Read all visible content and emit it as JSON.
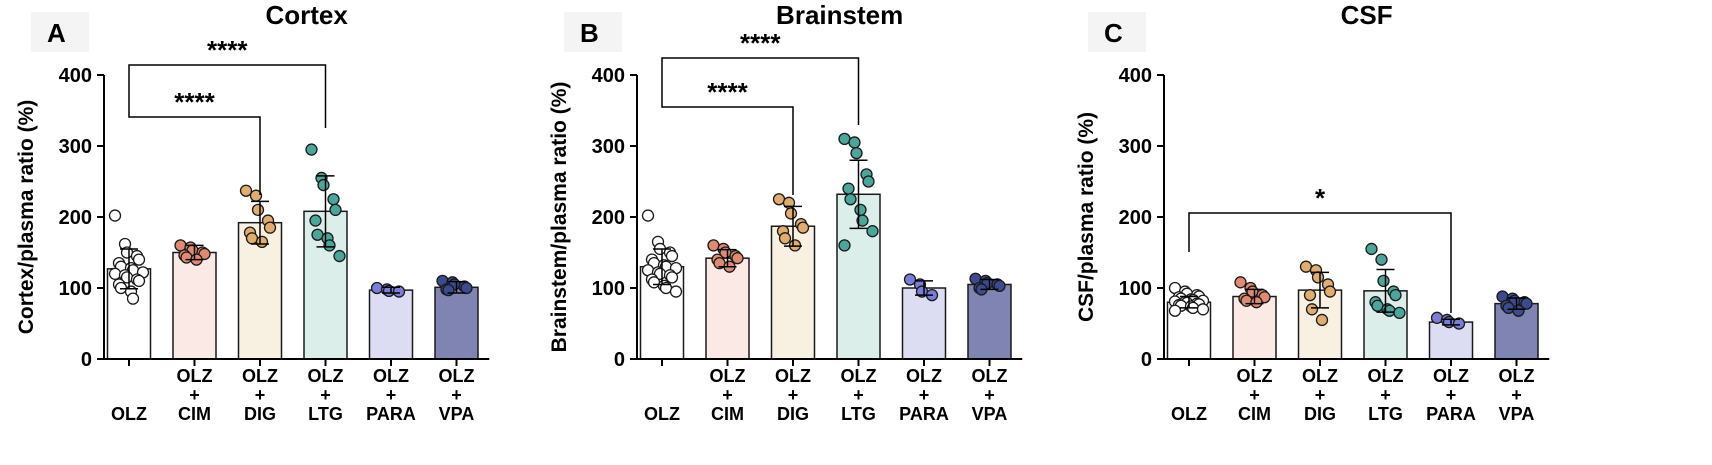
{
  "chart_data": [
    {
      "panel": "A",
      "type": "bar",
      "title": "Cortex",
      "ylabel": "Cortex/plasma ratio (%)",
      "ylim": [
        0,
        400
      ],
      "yticks": [
        0,
        100,
        200,
        300,
        400
      ],
      "categories": [
        {
          "lines": [
            "OLZ"
          ]
        },
        {
          "lines": [
            "OLZ",
            "+",
            "CIM"
          ]
        },
        {
          "lines": [
            "OLZ",
            "+",
            "DIG"
          ]
        },
        {
          "lines": [
            "OLZ",
            "+",
            "LTG"
          ]
        },
        {
          "lines": [
            "OLZ",
            "+",
            "PARA"
          ]
        },
        {
          "lines": [
            "OLZ",
            "+",
            "VPA"
          ]
        }
      ],
      "means": [
        127,
        150,
        192,
        208,
        97,
        101
      ],
      "sd": [
        28,
        10,
        30,
        50,
        4,
        8
      ],
      "points": [
        [
          202,
          162,
          150,
          145,
          140,
          135,
          130,
          128,
          125,
          122,
          120,
          118,
          115,
          112,
          110,
          105,
          100,
          95,
          85
        ],
        [
          160,
          157,
          153,
          150,
          148,
          146,
          143,
          140
        ],
        [
          237,
          230,
          210,
          195,
          185,
          178,
          170,
          165
        ],
        [
          295,
          255,
          245,
          225,
          210,
          195,
          175,
          170,
          160,
          145
        ],
        [
          100,
          98,
          96,
          95
        ],
        [
          110,
          108,
          105,
          102,
          100,
          98,
          97
        ]
      ],
      "comparisons": [
        {
          "from": 0,
          "to": 2,
          "label": "****"
        },
        {
          "from": 0,
          "to": 3,
          "label": "****"
        }
      ]
    },
    {
      "panel": "B",
      "type": "bar",
      "title": "Brainstem",
      "ylabel": "Brainstem/plasma ratio (%)",
      "ylim": [
        0,
        400
      ],
      "yticks": [
        0,
        100,
        200,
        300,
        400
      ],
      "categories": [
        {
          "lines": [
            "OLZ"
          ]
        },
        {
          "lines": [
            "OLZ",
            "+",
            "CIM"
          ]
        },
        {
          "lines": [
            "OLZ",
            "+",
            "DIG"
          ]
        },
        {
          "lines": [
            "OLZ",
            "+",
            "LTG"
          ]
        },
        {
          "lines": [
            "OLZ",
            "+",
            "PARA"
          ]
        },
        {
          "lines": [
            "OLZ",
            "+",
            "VPA"
          ]
        }
      ],
      "means": [
        130,
        142,
        187,
        232,
        100,
        105
      ],
      "sd": [
        25,
        12,
        28,
        48,
        10,
        7
      ],
      "points": [
        [
          202,
          165,
          155,
          150,
          145,
          140,
          135,
          132,
          130,
          128,
          125,
          122,
          120,
          118,
          115,
          112,
          108,
          103,
          100,
          95
        ],
        [
          160,
          155,
          150,
          145,
          142,
          140,
          135,
          130
        ],
        [
          225,
          220,
          205,
          190,
          185,
          180,
          170,
          160
        ],
        [
          310,
          305,
          290,
          260,
          250,
          240,
          225,
          210,
          195,
          180,
          160
        ],
        [
          112,
          105,
          95,
          90
        ],
        [
          113,
          110,
          107,
          105,
          103,
          100,
          98
        ]
      ],
      "comparisons": [
        {
          "from": 0,
          "to": 2,
          "label": "****"
        },
        {
          "from": 0,
          "to": 3,
          "label": "****"
        }
      ]
    },
    {
      "panel": "C",
      "type": "bar",
      "title": "CSF",
      "ylabel": "CSF/plasma ratio (%)",
      "ylim": [
        0,
        400
      ],
      "yticks": [
        0,
        100,
        200,
        300,
        400
      ],
      "categories": [
        {
          "lines": [
            "OLZ"
          ]
        },
        {
          "lines": [
            "OLZ",
            "+",
            "CIM"
          ]
        },
        {
          "lines": [
            "OLZ",
            "+",
            "DIG"
          ]
        },
        {
          "lines": [
            "OLZ",
            "+",
            "LTG"
          ]
        },
        {
          "lines": [
            "OLZ",
            "+",
            "PARA"
          ]
        },
        {
          "lines": [
            "OLZ",
            "+",
            "VPA"
          ]
        }
      ],
      "means": [
        80,
        88,
        97,
        96,
        52,
        78
      ],
      "sd": [
        8,
        10,
        25,
        30,
        4,
        8
      ],
      "points": [
        [
          100,
          95,
          92,
          90,
          88,
          87,
          85,
          84,
          83,
          82,
          81,
          80,
          79,
          78,
          77,
          76,
          75,
          74,
          72,
          70,
          68
        ],
        [
          108,
          100,
          95,
          90,
          87,
          85,
          82,
          80
        ],
        [
          130,
          125,
          115,
          105,
          95,
          90,
          70,
          55
        ],
        [
          155,
          140,
          110,
          95,
          90,
          80,
          75,
          70,
          68,
          65
        ],
        [
          58,
          55,
          52,
          50
        ],
        [
          88,
          85,
          82,
          80,
          78,
          75,
          72,
          68
        ]
      ],
      "comparisons": [
        {
          "from": 0,
          "to": 4,
          "label": "*"
        }
      ]
    }
  ],
  "colors": {
    "fills": [
      "#ffffff",
      "#fbe9e6",
      "#f8f0e0",
      "#dbeeea",
      "#dcdcf3",
      "#7f84b3"
    ],
    "points": [
      "#ffffff",
      "#e08a72",
      "#e0ad6e",
      "#4aa69a",
      "#7b7ed8",
      "#3c4a8f"
    ]
  }
}
